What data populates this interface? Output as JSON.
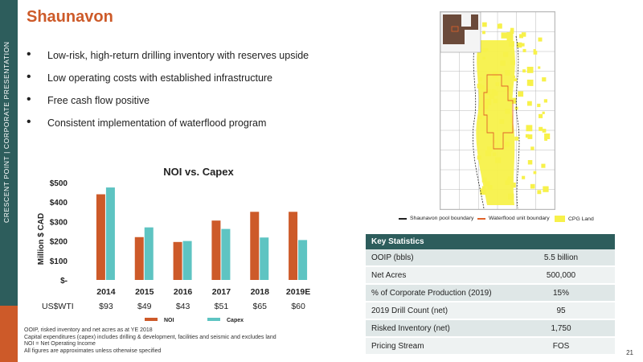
{
  "sidebar": {
    "text": "CRESCENT POINT   |   CORPORATE PRESENTATION"
  },
  "title": "Shaunavon",
  "bullets": [
    "Low-risk, high-return drilling inventory with reserves upside",
    "Low operating costs with established infrastructure",
    "Free cash flow positive",
    "Consistent implementation of waterflood program"
  ],
  "chart_data": {
    "type": "bar",
    "title": "NOI vs. Capex",
    "ylabel": "Million $ CAD",
    "xlabel": "",
    "categories": [
      "2014",
      "2015",
      "2016",
      "2017",
      "2018",
      "2019E"
    ],
    "ylim": [
      0,
      500
    ],
    "yticks": [
      "$-",
      "$100",
      "$200",
      "$300",
      "$400",
      "$500"
    ],
    "series": [
      {
        "name": "NOI",
        "values": [
          440,
          220,
          195,
          305,
          350,
          350
        ],
        "color": "#cd5a29"
      },
      {
        "name": "Capex",
        "values": [
          475,
          270,
          200,
          262,
          218,
          205
        ],
        "color": "#5ec4c2"
      }
    ],
    "wti_label": "US$WTI",
    "wti_values": [
      "$93",
      "$49",
      "$43",
      "$51",
      "$65",
      "$60"
    ],
    "legend_position": "bottom"
  },
  "footnotes": [
    "OOIP, risked inventory and net acres as at YE 2018",
    "Capital expenditures (capex) includes drilling & development, facilities and seismic and excludes land",
    "NOI = Net Operating Income",
    "All figures are approximates unless otherwise specified"
  ],
  "map": {
    "legend": {
      "pool": "Shaunavon pool boundary",
      "waterflood": "Waterflood unit boundary",
      "land": "CPG Land"
    },
    "colors": {
      "land": "#f7f14a",
      "pool": "#222222",
      "waterflood": "#e0622a",
      "grid": "#b8b8b8"
    }
  },
  "key_statistics": {
    "header": "Key Statistics",
    "rows": [
      {
        "label": "OOIP (bbls)",
        "value": "5.5 billion"
      },
      {
        "label": "Net Acres",
        "value": "500,000"
      },
      {
        "label": "% of Corporate Production (2019)",
        "value": "15%"
      },
      {
        "label": "2019 Drill Count (net)",
        "value": "95"
      },
      {
        "label": "Risked Inventory (net)",
        "value": "1,750"
      },
      {
        "label": "Pricing Stream",
        "value": "FOS"
      }
    ]
  },
  "page_number": "21"
}
